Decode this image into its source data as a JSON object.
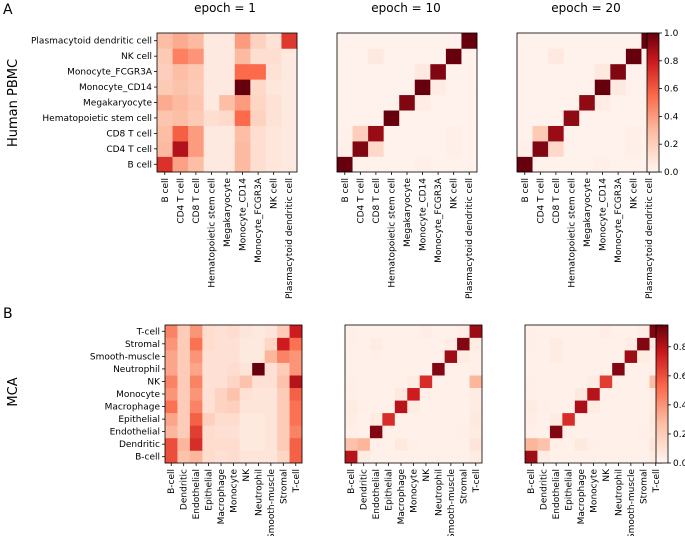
{
  "figure": {
    "panel_labels": [
      "A",
      "B"
    ],
    "row_labels": [
      "Human PBMC",
      "MCA"
    ],
    "column_titles": [
      "epoch = 1",
      "epoch = 10",
      "epoch = 20"
    ]
  },
  "colormap": {
    "low": "#fff5f0",
    "mid1": "#fcbba1",
    "mid2": "#fb6a4a",
    "mid3": "#cb181d",
    "high": "#67000d",
    "frame": "#000000"
  },
  "chart_data": [
    {
      "type": "heatmap",
      "panel": "A",
      "dataset": "Human PBMC",
      "categories": [
        "B cell",
        "CD4 T cell",
        "CD8 T cell",
        "Hematopoietic stem cell",
        "Megakaryocyte",
        "Monocyte_CD14",
        "Monocyte_FCGR3A",
        "NK cell",
        "Plasmacytoid dendritic cell"
      ],
      "colorbar": {
        "min": 0.0,
        "max": 1.0,
        "ticks": [
          "0.0",
          "0.2",
          "0.4",
          "0.6",
          "0.8",
          "1.0"
        ]
      },
      "matrices": [
        {
          "title": "epoch = 1",
          "values": [
            [
              0.72,
              0.38,
              0.28,
              0.06,
              0.06,
              0.3,
              0.12,
              0.08,
              0.06
            ],
            [
              0.3,
              0.85,
              0.4,
              0.06,
              0.06,
              0.3,
              0.12,
              0.08,
              0.06
            ],
            [
              0.28,
              0.58,
              0.4,
              0.06,
              0.06,
              0.28,
              0.12,
              0.08,
              0.06
            ],
            [
              0.25,
              0.28,
              0.22,
              0.12,
              0.14,
              0.55,
              0.18,
              0.1,
              0.06
            ],
            [
              0.35,
              0.3,
              0.25,
              0.06,
              0.28,
              0.4,
              0.16,
              0.1,
              0.06
            ],
            [
              0.22,
              0.26,
              0.22,
              0.06,
              0.06,
              1.0,
              0.15,
              0.08,
              0.06
            ],
            [
              0.2,
              0.28,
              0.24,
              0.06,
              0.06,
              0.55,
              0.55,
              0.1,
              0.06
            ],
            [
              0.22,
              0.48,
              0.42,
              0.06,
              0.06,
              0.3,
              0.12,
              0.12,
              0.06
            ],
            [
              0.28,
              0.35,
              0.3,
              0.06,
              0.06,
              0.4,
              0.18,
              0.1,
              0.7
            ]
          ]
        },
        {
          "title": "epoch = 10",
          "values": [
            [
              1.0,
              0.02,
              0.02,
              0.02,
              0.02,
              0.03,
              0.02,
              0.02,
              0.02
            ],
            [
              0.03,
              0.95,
              0.15,
              0.02,
              0.02,
              0.02,
              0.02,
              0.03,
              0.02
            ],
            [
              0.02,
              0.2,
              0.9,
              0.02,
              0.02,
              0.02,
              0.02,
              0.03,
              0.02
            ],
            [
              0.02,
              0.02,
              0.02,
              1.0,
              0.02,
              0.02,
              0.02,
              0.02,
              0.02
            ],
            [
              0.02,
              0.02,
              0.02,
              0.02,
              0.95,
              0.04,
              0.02,
              0.02,
              0.02
            ],
            [
              0.02,
              0.02,
              0.02,
              0.02,
              0.02,
              1.0,
              0.05,
              0.02,
              0.02
            ],
            [
              0.02,
              0.02,
              0.02,
              0.02,
              0.02,
              0.06,
              0.95,
              0.02,
              0.02
            ],
            [
              0.02,
              0.02,
              0.06,
              0.02,
              0.02,
              0.02,
              0.02,
              1.0,
              0.02
            ],
            [
              0.02,
              0.02,
              0.02,
              0.02,
              0.02,
              0.02,
              0.02,
              0.02,
              1.0
            ]
          ]
        },
        {
          "title": "epoch = 20",
          "values": [
            [
              1.0,
              0.02,
              0.02,
              0.02,
              0.02,
              0.03,
              0.02,
              0.02,
              0.02
            ],
            [
              0.03,
              0.95,
              0.15,
              0.02,
              0.02,
              0.02,
              0.02,
              0.03,
              0.02
            ],
            [
              0.02,
              0.22,
              0.9,
              0.02,
              0.02,
              0.02,
              0.02,
              0.03,
              0.02
            ],
            [
              0.02,
              0.02,
              0.02,
              0.92,
              0.02,
              0.02,
              0.02,
              0.02,
              0.02
            ],
            [
              0.02,
              0.02,
              0.02,
              0.02,
              0.92,
              0.04,
              0.02,
              0.02,
              0.02
            ],
            [
              0.02,
              0.02,
              0.02,
              0.02,
              0.02,
              1.0,
              0.06,
              0.02,
              0.02
            ],
            [
              0.02,
              0.02,
              0.02,
              0.02,
              0.02,
              0.06,
              0.95,
              0.02,
              0.02
            ],
            [
              0.02,
              0.02,
              0.06,
              0.02,
              0.02,
              0.02,
              0.02,
              1.0,
              0.02
            ],
            [
              0.02,
              0.02,
              0.02,
              0.02,
              0.02,
              0.02,
              0.02,
              0.02,
              1.0
            ]
          ]
        }
      ]
    },
    {
      "type": "heatmap",
      "panel": "B",
      "dataset": "MCA",
      "categories": [
        "B-cell",
        "Dendritic",
        "Endothelial",
        "Epithelial",
        "Macrophage",
        "Monocyte",
        "NK",
        "Neutrophil",
        "Smooth-muscle",
        "Stromal",
        "T-cell"
      ],
      "colorbar": {
        "min": 0.0,
        "max": 0.95,
        "ticks": [
          "0.0",
          "0.2",
          "0.4",
          "0.6",
          "0.8"
        ]
      },
      "matrices": [
        {
          "title": "epoch = 1",
          "values": [
            [
              0.6,
              0.25,
              0.3,
              0.12,
              0.1,
              0.12,
              0.08,
              0.08,
              0.08,
              0.15,
              0.55
            ],
            [
              0.6,
              0.3,
              0.7,
              0.12,
              0.12,
              0.12,
              0.06,
              0.06,
              0.08,
              0.2,
              0.55
            ],
            [
              0.3,
              0.2,
              0.65,
              0.12,
              0.1,
              0.1,
              0.06,
              0.06,
              0.08,
              0.2,
              0.45
            ],
            [
              0.35,
              0.2,
              0.55,
              0.18,
              0.12,
              0.12,
              0.06,
              0.06,
              0.08,
              0.2,
              0.5
            ],
            [
              0.5,
              0.2,
              0.45,
              0.1,
              0.16,
              0.18,
              0.08,
              0.08,
              0.08,
              0.2,
              0.5
            ],
            [
              0.4,
              0.2,
              0.4,
              0.1,
              0.16,
              0.25,
              0.1,
              0.08,
              0.08,
              0.2,
              0.55
            ],
            [
              0.45,
              0.2,
              0.45,
              0.1,
              0.1,
              0.15,
              0.25,
              0.1,
              0.1,
              0.25,
              0.8
            ],
            [
              0.35,
              0.2,
              0.35,
              0.1,
              0.1,
              0.12,
              0.08,
              0.95,
              0.1,
              0.2,
              0.4
            ],
            [
              0.35,
              0.2,
              0.4,
              0.1,
              0.1,
              0.1,
              0.06,
              0.06,
              0.3,
              0.45,
              0.4
            ],
            [
              0.4,
              0.2,
              0.5,
              0.12,
              0.1,
              0.1,
              0.06,
              0.06,
              0.15,
              0.75,
              0.5
            ],
            [
              0.45,
              0.2,
              0.4,
              0.12,
              0.1,
              0.12,
              0.08,
              0.06,
              0.08,
              0.2,
              0.75
            ]
          ]
        },
        {
          "title": "epoch = 10",
          "values": [
            [
              0.8,
              0.05,
              0.02,
              0.02,
              0.02,
              0.02,
              0.02,
              0.02,
              0.02,
              0.02,
              0.05
            ],
            [
              0.25,
              0.3,
              0.03,
              0.02,
              0.06,
              0.03,
              0.02,
              0.02,
              0.02,
              0.02,
              0.08
            ],
            [
              0.03,
              0.02,
              0.9,
              0.03,
              0.02,
              0.02,
              0.02,
              0.02,
              0.02,
              0.03,
              0.05
            ],
            [
              0.04,
              0.02,
              0.05,
              0.7,
              0.02,
              0.02,
              0.02,
              0.02,
              0.02,
              0.02,
              0.06
            ],
            [
              0.05,
              0.03,
              0.02,
              0.02,
              0.8,
              0.05,
              0.02,
              0.02,
              0.02,
              0.02,
              0.05
            ],
            [
              0.03,
              0.02,
              0.02,
              0.02,
              0.06,
              0.75,
              0.03,
              0.02,
              0.02,
              0.02,
              0.05
            ],
            [
              0.03,
              0.02,
              0.02,
              0.02,
              0.02,
              0.05,
              0.7,
              0.02,
              0.02,
              0.02,
              0.3
            ],
            [
              0.02,
              0.02,
              0.02,
              0.02,
              0.02,
              0.02,
              0.02,
              0.9,
              0.02,
              0.02,
              0.03
            ],
            [
              0.02,
              0.02,
              0.03,
              0.02,
              0.02,
              0.02,
              0.02,
              0.02,
              0.85,
              0.05,
              0.03
            ],
            [
              0.03,
              0.02,
              0.05,
              0.02,
              0.02,
              0.02,
              0.02,
              0.02,
              0.04,
              0.9,
              0.05
            ],
            [
              0.03,
              0.02,
              0.02,
              0.02,
              0.02,
              0.02,
              0.04,
              0.02,
              0.02,
              0.04,
              0.85
            ]
          ]
        },
        {
          "title": "epoch = 20",
          "values": [
            [
              0.85,
              0.05,
              0.02,
              0.02,
              0.02,
              0.02,
              0.02,
              0.02,
              0.02,
              0.02,
              0.05
            ],
            [
              0.3,
              0.25,
              0.03,
              0.02,
              0.06,
              0.03,
              0.02,
              0.02,
              0.02,
              0.02,
              0.08
            ],
            [
              0.03,
              0.02,
              0.9,
              0.03,
              0.02,
              0.02,
              0.02,
              0.02,
              0.02,
              0.03,
              0.05
            ],
            [
              0.04,
              0.02,
              0.05,
              0.7,
              0.02,
              0.02,
              0.02,
              0.02,
              0.02,
              0.02,
              0.06
            ],
            [
              0.05,
              0.03,
              0.02,
              0.02,
              0.82,
              0.05,
              0.02,
              0.02,
              0.02,
              0.02,
              0.05
            ],
            [
              0.03,
              0.02,
              0.02,
              0.02,
              0.06,
              0.8,
              0.03,
              0.02,
              0.02,
              0.02,
              0.05
            ],
            [
              0.03,
              0.02,
              0.02,
              0.02,
              0.02,
              0.05,
              0.65,
              0.02,
              0.02,
              0.02,
              0.28
            ],
            [
              0.02,
              0.02,
              0.02,
              0.02,
              0.02,
              0.02,
              0.02,
              0.9,
              0.02,
              0.02,
              0.03
            ],
            [
              0.02,
              0.02,
              0.05,
              0.02,
              0.02,
              0.02,
              0.02,
              0.02,
              0.85,
              0.05,
              0.03
            ],
            [
              0.03,
              0.02,
              0.05,
              0.02,
              0.02,
              0.02,
              0.02,
              0.02,
              0.04,
              0.9,
              0.05
            ],
            [
              0.03,
              0.02,
              0.02,
              0.02,
              0.02,
              0.02,
              0.04,
              0.02,
              0.02,
              0.04,
              0.9
            ]
          ]
        }
      ]
    }
  ]
}
